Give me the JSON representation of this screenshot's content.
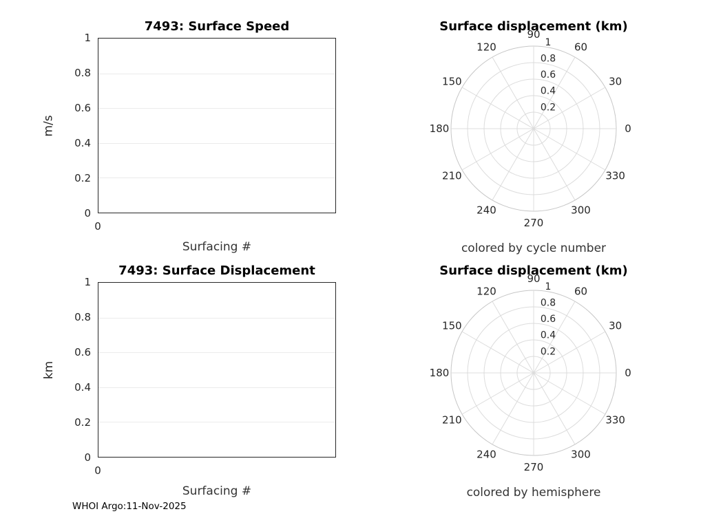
{
  "footer": {
    "text": "WHOI Argo:11-Nov-2025"
  },
  "chart_data": [
    {
      "type": "line",
      "title": "7493: Surface Speed",
      "xlabel": "Surfacing #",
      "ylabel": "m/s",
      "xlim": [
        0,
        1
      ],
      "ylim": [
        0,
        1
      ],
      "xticks": [
        0
      ],
      "yticks": [
        0,
        0.2,
        0.4,
        0.6,
        0.8,
        1
      ],
      "grid": "horizontal",
      "legend": "none",
      "series": []
    },
    {
      "type": "polar",
      "title": "Surface displacement (km)",
      "caption": "colored by cycle number",
      "angle_ticks": [
        0,
        30,
        60,
        90,
        120,
        150,
        180,
        210,
        240,
        270,
        300,
        330
      ],
      "radial_ticks": [
        0.2,
        0.4,
        0.6,
        0.8,
        1
      ],
      "rlim": [
        0,
        1
      ],
      "grid": "on",
      "legend": "none",
      "series": []
    },
    {
      "type": "line",
      "title": "7493: Surface Displacement",
      "xlabel": "Surfacing #",
      "ylabel": "km",
      "xlim": [
        0,
        1
      ],
      "ylim": [
        0,
        1
      ],
      "xticks": [
        0
      ],
      "yticks": [
        0,
        0.2,
        0.4,
        0.6,
        0.8,
        1
      ],
      "grid": "horizontal",
      "legend": "none",
      "series": []
    },
    {
      "type": "polar",
      "title": "Surface displacement (km)",
      "caption": "colored by hemisphere",
      "angle_ticks": [
        0,
        30,
        60,
        90,
        120,
        150,
        180,
        210,
        240,
        270,
        300,
        330
      ],
      "radial_ticks": [
        0.2,
        0.4,
        0.6,
        0.8,
        1
      ],
      "rlim": [
        0,
        1
      ],
      "grid": "on",
      "legend": "none",
      "series": []
    }
  ]
}
